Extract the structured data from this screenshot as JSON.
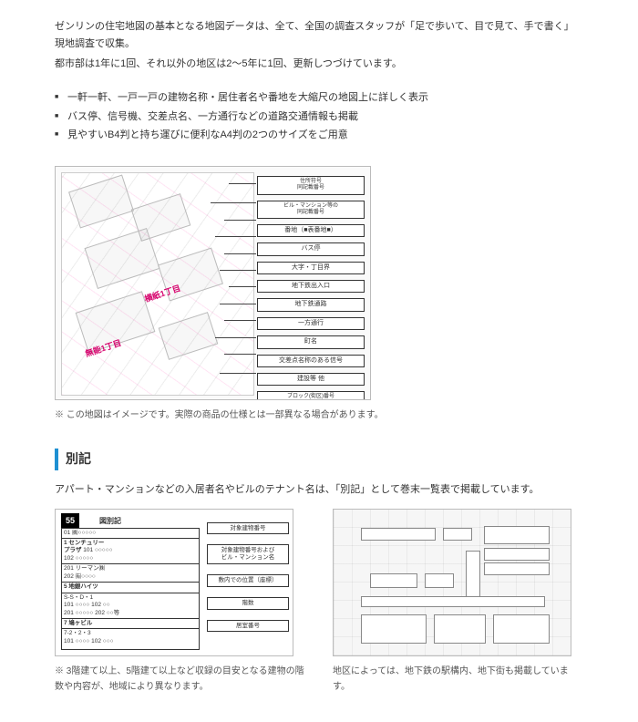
{
  "intro": {
    "line1": "ゼンリンの住宅地図の基本となる地図データは、全て、全国の調査スタッフが「足で歩いて、目で見て、手で書く」現地調査で収集。",
    "line2": "都市部は1年に1回、それ以外の地区は2～5年に1回、更新しつづけています。"
  },
  "bullets": [
    "一軒一軒、一戸一戸の建物名称・居住者名や番地を大縮尺の地図上に詳しく表示",
    "バス停、信号機、交差点名、一方通行などの道路交通情報も掲載",
    "見やすいB4判と持ち運びに便利なA4判の2つのサイズをご用意"
  ],
  "map1": {
    "ward_a": "横紙1丁目",
    "ward_b": "無能1丁目",
    "callouts": [
      "住所符号\n同記載番号",
      "ビル・マンション等の\n同記載番号",
      "番地（■表番地■）",
      "バス停",
      "大字・丁目界",
      "地下鉄出入口",
      "地下鉄通路",
      "一方通行",
      "町名",
      "交差点名称のある信号",
      "建設等 他",
      "ブロック(街区)番号\n※町名番号※"
    ]
  },
  "map1_caption": "※ この地図はイメージです。実際の商品の仕様とは一部異なる場合があります。",
  "section": "別記",
  "section_intro": "アパート・マンションなどの入居者名やビルのテナント名は、「別記」として巻末一覧表で掲載しています。",
  "legend": {
    "badge": "55",
    "badge_label": "図別記",
    "rows": [
      {
        "n": "",
        "t": "01 ㈱○○○○○"
      },
      {
        "n": "1 センチュリー\nプラザ",
        "t": "101 ○○○○○\n102 ○○○○○"
      },
      {
        "n": "",
        "t": "201 リーマン㈱\n202 ㈲○○○○"
      },
      {
        "n": "5 地銀ハイツ",
        "t": ""
      },
      {
        "n": "",
        "t": "S-S・D・1\n101 ○○○○ 102 ○○\n201 ○○○○○ 202 ○○等"
      },
      {
        "n": "7 鳩ヶビル",
        "t": ""
      },
      {
        "n": "",
        "t": "7-2・2・3\n101 ○○○○ 102 ○○○"
      }
    ],
    "right": [
      "対象建物番号",
      "対象建物番号および\nビル・マンション名",
      "敷内での位置（座標）",
      "階数",
      "居室番号"
    ]
  },
  "legend_caption": "※ 3階建て以上、5階建て以上など収録の目安となる建物の階数や内容が、地域により異なります。",
  "map2_caption": "地区によっては、地下鉄の駅構内、地下街も掲載しています。"
}
